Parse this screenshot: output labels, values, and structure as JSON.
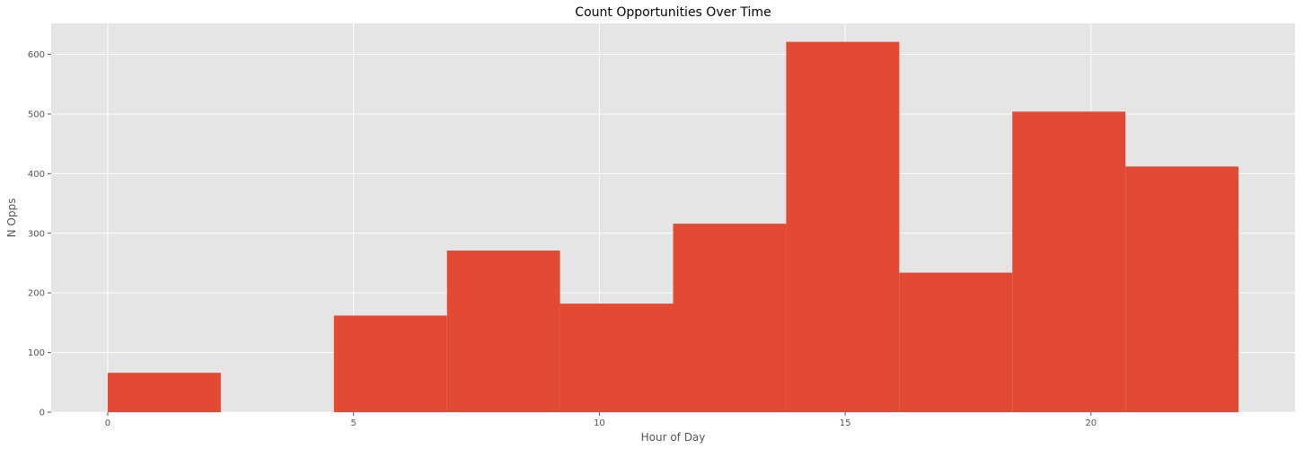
{
  "chart_data": {
    "type": "bar",
    "subtype": "histogram",
    "title": "Count Opportunities Over Time",
    "xlabel": "Hour of Day",
    "ylabel": "N Opps",
    "xlim": [
      -1.15,
      24.15
    ],
    "ylim": [
      0,
      652
    ],
    "grid": true,
    "xticks": [
      0,
      5,
      10,
      15,
      20
    ],
    "yticks": [
      0,
      100,
      200,
      300,
      400,
      500,
      600
    ],
    "bins": [
      {
        "x0": 0.0,
        "x1": 2.3,
        "value": 66
      },
      {
        "x0": 2.3,
        "x1": 4.6,
        "value": 0
      },
      {
        "x0": 4.6,
        "x1": 6.9,
        "value": 162
      },
      {
        "x0": 6.9,
        "x1": 9.2,
        "value": 271
      },
      {
        "x0": 9.2,
        "x1": 11.5,
        "value": 182
      },
      {
        "x0": 11.5,
        "x1": 13.8,
        "value": 316
      },
      {
        "x0": 13.8,
        "x1": 16.1,
        "value": 621
      },
      {
        "x0": 16.1,
        "x1": 18.4,
        "value": 234
      },
      {
        "x0": 18.4,
        "x1": 20.7,
        "value": 504
      },
      {
        "x0": 20.7,
        "x1": 23.0,
        "value": 412
      }
    ],
    "colors": {
      "bar": "#e24a33",
      "background": "#e5e5e5",
      "grid": "#ffffff",
      "tick_text": "#555555",
      "label_text": "#555555",
      "title_text": "#000000"
    }
  }
}
